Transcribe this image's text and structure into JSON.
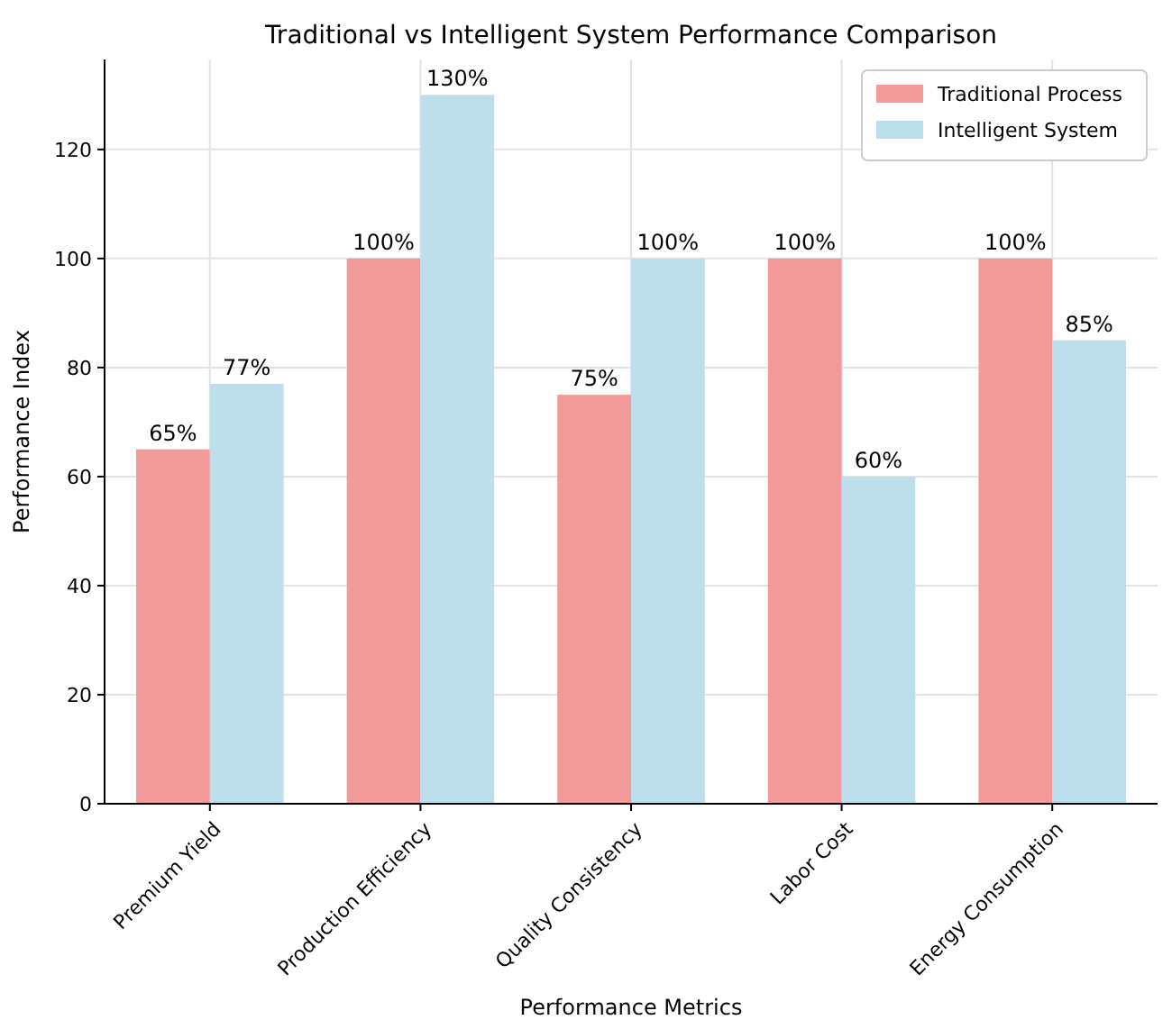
{
  "chart_data": {
    "type": "bar",
    "title": "Traditional vs Intelligent System Performance Comparison",
    "xlabel": "Performance Metrics",
    "ylabel": "Performance Index",
    "categories": [
      "Premium Yield",
      "Production Efficiency",
      "Quality Consistency",
      "Labor Cost",
      "Energy Consumption"
    ],
    "series": [
      {
        "name": "Traditional Process",
        "color": "#f29999",
        "values": [
          65,
          100,
          75,
          100,
          100
        ],
        "value_labels": [
          "65%",
          "100%",
          "75%",
          "100%",
          "100%"
        ]
      },
      {
        "name": "Intelligent System",
        "color": "#bddfeb",
        "values": [
          77,
          130,
          100,
          60,
          85
        ],
        "value_labels": [
          "77%",
          "130%",
          "100%",
          "60%",
          "85%"
        ]
      }
    ],
    "ylim": [
      0,
      136.5
    ],
    "yticks": [
      0,
      20,
      40,
      60,
      80,
      100,
      120
    ],
    "grid": true,
    "legend": "top right"
  }
}
